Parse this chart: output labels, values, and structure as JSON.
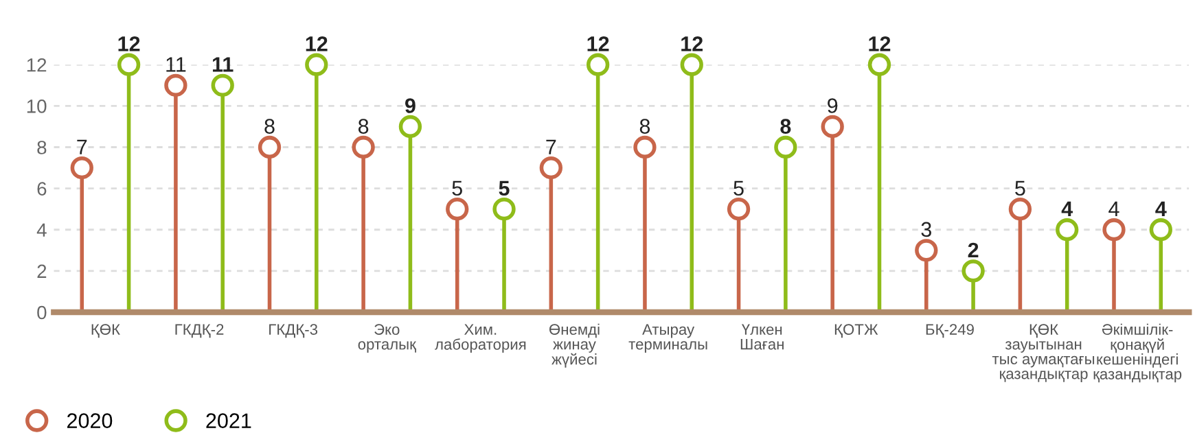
{
  "chart_data": {
    "type": "lollipop",
    "categories": [
      "ҚӨК",
      "ГКДҚ-2",
      "ГКДҚ-3",
      "Эко\nорталық",
      "Хим.\nлаборатория",
      "Өнемді\nжинау\nжүйесі",
      "Атырау\nтерминалы",
      "Үлкен\nШаған",
      "ҚОТЖ",
      "БҚ-249",
      "ҚӨК\nзауытынан\nтыс аумақтағы\nқазандықтар",
      "Әкімшілік-\nқонақүй\nкешеніндегі\nқазандықтар"
    ],
    "series": [
      {
        "name": "2020",
        "color": "#c8664a",
        "values": [
          7,
          11,
          8,
          8,
          5,
          7,
          8,
          5,
          9,
          3,
          5,
          4
        ]
      },
      {
        "name": "2021",
        "color": "#8fbc1a",
        "values": [
          12,
          11,
          12,
          9,
          5,
          12,
          12,
          8,
          12,
          2,
          4,
          4
        ]
      }
    ],
    "ylim": [
      0,
      12
    ],
    "yticks": [
      0,
      2,
      4,
      6,
      8,
      10,
      12
    ],
    "grid": "y",
    "legend": "bottom left",
    "data_labels": true,
    "marker": "circle"
  }
}
